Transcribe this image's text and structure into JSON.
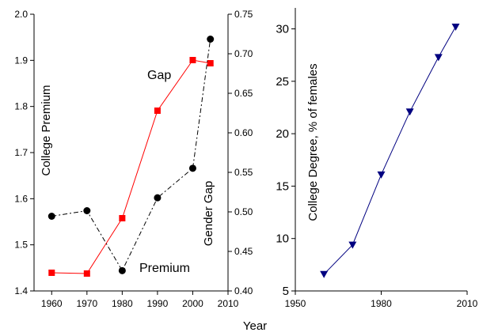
{
  "chart_data": [
    {
      "type": "line",
      "x": [
        1960,
        1970,
        1980,
        1990,
        2000,
        2005
      ],
      "xlim": [
        1955,
        2010
      ],
      "xticks": [
        1960,
        1970,
        1980,
        1990,
        2000,
        2010
      ],
      "xlabel": "Year",
      "ylabel_left": "College Premium",
      "ylim_left": [
        1.4,
        2.0
      ],
      "yticks_left": [
        1.4,
        1.5,
        1.6,
        1.7,
        1.8,
        1.9,
        2.0
      ],
      "ylabel_right": "Gender Gap",
      "ylim_right": [
        0.4,
        0.75
      ],
      "yticks_right": [
        0.4,
        0.45,
        0.5,
        0.55,
        0.6,
        0.65,
        0.7,
        0.75
      ],
      "grid": false,
      "series": [
        {
          "name": "Gap",
          "axis": "right",
          "color": "#ff0000",
          "marker": "square",
          "line": "solid",
          "values": [
            0.423,
            0.422,
            0.492,
            0.628,
            0.692,
            0.688
          ]
        },
        {
          "name": "Premium",
          "axis": "left",
          "color": "#000000",
          "marker": "circle",
          "line": "dash-dot",
          "values": [
            1.562,
            1.574,
            1.444,
            1.602,
            1.666,
            1.946
          ]
        }
      ]
    },
    {
      "type": "line",
      "x": [
        1960,
        1970,
        1980,
        1990,
        2000,
        2006
      ],
      "xlim": [
        1950,
        2010
      ],
      "xticks": [
        1950,
        1980,
        2010
      ],
      "ylabel": "College Degree, % of females",
      "ylim": [
        5,
        32
      ],
      "yticks": [
        5,
        10,
        15,
        20,
        25,
        30
      ],
      "grid": false,
      "series": [
        {
          "color": "#000080",
          "marker": "triangle-down",
          "line": "solid",
          "values": [
            6.6,
            9.4,
            16.1,
            22.1,
            27.3,
            30.2
          ]
        }
      ]
    }
  ]
}
